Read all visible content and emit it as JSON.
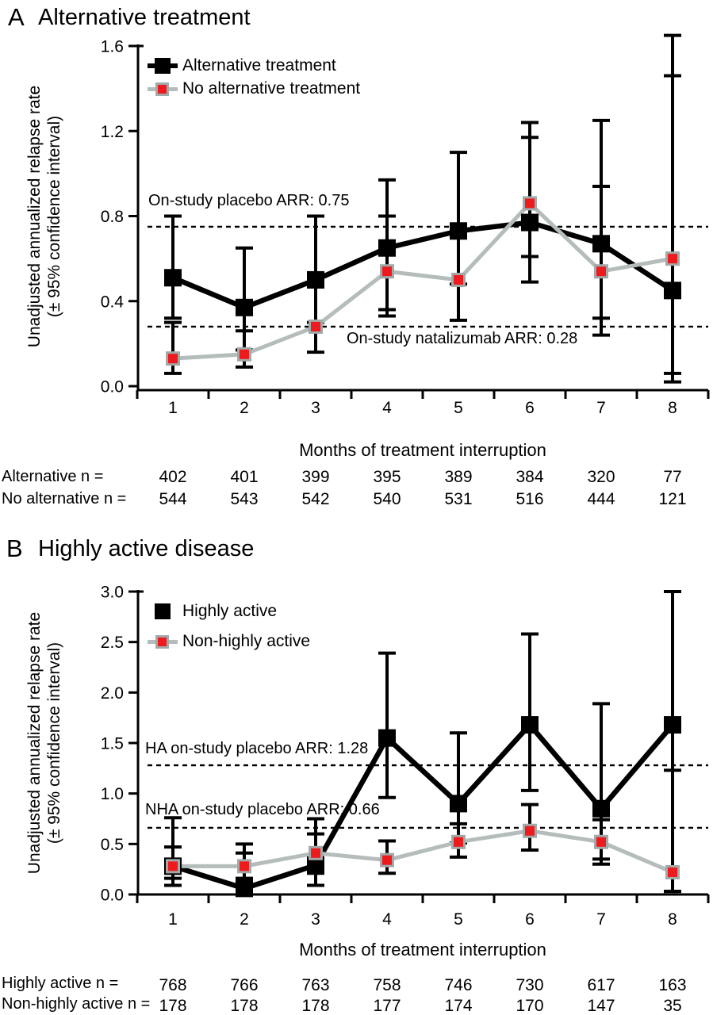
{
  "colors": {
    "series_black": "#000000",
    "series_red": "#ee1b1e",
    "gray_line": "#b5bcbc",
    "marker_border": "#a2a9a9"
  },
  "chart_data": [
    {
      "type": "line",
      "panel_label": "A",
      "title": "Alternative treatment",
      "ylabel_line1": "Unadjusted annualized relapse rate",
      "ylabel_line2": "(± 95% confidence interval)",
      "xlabel": "Months of treatment interruption",
      "x": [
        1,
        2,
        3,
        4,
        5,
        6,
        7,
        8
      ],
      "ylim": [
        0,
        1.6
      ],
      "yticks": [
        0.0,
        0.4,
        0.8,
        1.2,
        1.6
      ],
      "grid": false,
      "legend_position": "top-left",
      "legend": [
        {
          "label": "Alternative treatment",
          "marker": "black-square",
          "line": "black"
        },
        {
          "label": "No alternative treatment",
          "marker": "red-square",
          "line": "gray"
        }
      ],
      "annotations": [
        {
          "text": "On-study placebo ARR: 0.75",
          "value": 0.75,
          "text_side": "above"
        },
        {
          "text": "On-study natalizumab ARR: 0.28",
          "value": 0.28,
          "text_side": "below"
        }
      ],
      "series": [
        {
          "name": "Alternative treatment",
          "marker": "black-square",
          "values": [
            0.51,
            0.37,
            0.5,
            0.65,
            0.73,
            0.77,
            0.67,
            0.45
          ],
          "ci_low": [
            0.32,
            0.17,
            0.3,
            0.36,
            0.48,
            0.49,
            0.24,
            0.02
          ],
          "ci_high": [
            0.8,
            0.65,
            0.8,
            0.97,
            1.1,
            1.17,
            1.25,
            1.46
          ]
        },
        {
          "name": "No alternative treatment",
          "marker": "red-square",
          "values": [
            0.13,
            0.15,
            0.28,
            0.54,
            0.5,
            0.86,
            0.54,
            0.6
          ],
          "ci_low": [
            0.06,
            0.09,
            0.16,
            0.33,
            0.31,
            0.61,
            0.32,
            0.06
          ],
          "ci_high": [
            0.3,
            0.26,
            0.49,
            0.8,
            0.72,
            1.24,
            0.94,
            1.65
          ]
        }
      ],
      "n_table": {
        "rows": [
          {
            "label": "Alternative n =",
            "values": [
              402,
              401,
              399,
              395,
              389,
              384,
              320,
              77
            ]
          },
          {
            "label": "No alternative n =",
            "values": [
              544,
              543,
              542,
              540,
              531,
              516,
              444,
              121
            ]
          }
        ]
      }
    },
    {
      "type": "line",
      "panel_label": "B",
      "title": "Highly active disease",
      "ylabel_line1": "Unadjusted annualized relapse rate",
      "ylabel_line2": "(± 95% confidence interval)",
      "xlabel": "Months of treatment interruption",
      "x": [
        1,
        2,
        3,
        4,
        5,
        6,
        7,
        8
      ],
      "ylim": [
        0,
        3.0
      ],
      "yticks": [
        0.0,
        0.5,
        1.0,
        1.5,
        2.0,
        2.5,
        3.0
      ],
      "grid": false,
      "legend_position": "top-left",
      "legend": [
        {
          "label": "Highly active",
          "marker": "black-square",
          "line": "none"
        },
        {
          "label": "Non-highly active",
          "marker": "red-square",
          "line": "gray"
        }
      ],
      "annotations": [
        {
          "text": "HA on-study placebo ARR: 1.28",
          "value": 1.28,
          "text_side": "above"
        },
        {
          "text": "NHA on-study placebo ARR: 0.66",
          "value": 0.66,
          "text_side": "above"
        }
      ],
      "series": [
        {
          "name": "Highly active",
          "marker": "black-square",
          "values": [
            0.28,
            0.06,
            0.29,
            1.55,
            0.9,
            1.68,
            0.85,
            1.68
          ],
          "ci_low": [
            0.16,
            0.0,
            0.09,
            0.96,
            0.51,
            1.03,
            0.35,
            0.03
          ],
          "ci_high": [
            0.47,
            0.41,
            0.75,
            2.39,
            1.6,
            2.58,
            1.89,
            3.0
          ]
        },
        {
          "name": "Non-highly active",
          "marker": "red-square",
          "values": [
            0.28,
            0.28,
            0.41,
            0.34,
            0.52,
            0.63,
            0.52,
            0.22
          ],
          "ci_low": [
            0.09,
            0.16,
            0.21,
            0.21,
            0.37,
            0.44,
            0.3,
            0.03
          ],
          "ci_high": [
            0.76,
            0.5,
            0.6,
            0.53,
            0.7,
            0.89,
            0.74,
            1.23
          ]
        }
      ],
      "n_table": {
        "rows": [
          {
            "label": "Highly active n =",
            "values": [
              768,
              766,
              763,
              758,
              746,
              730,
              617,
              163
            ]
          },
          {
            "label": "Non-highly active n =",
            "values": [
              178,
              178,
              178,
              177,
              174,
              170,
              147,
              35
            ]
          }
        ]
      }
    }
  ]
}
